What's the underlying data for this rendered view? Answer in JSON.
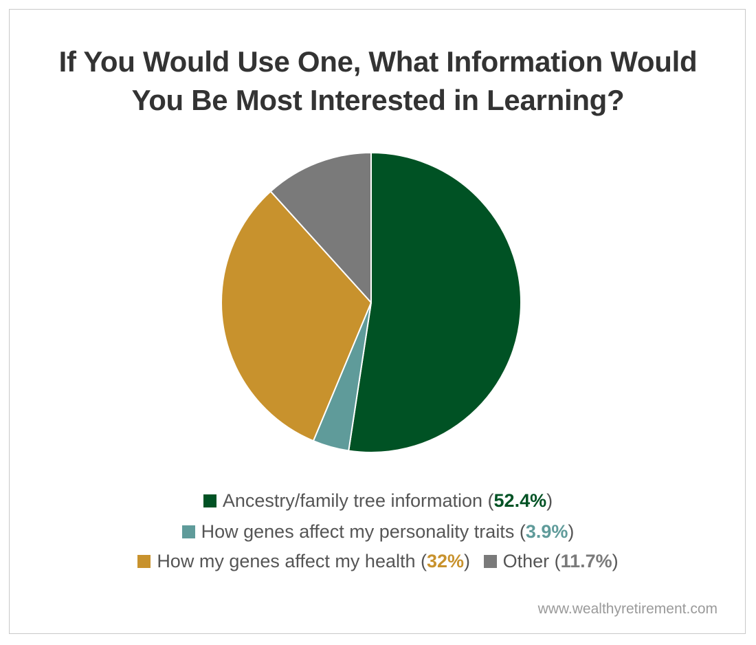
{
  "chart_data": {
    "type": "pie",
    "title": [
      "If You Would Use One, What Information Would",
      "You Be Most Interested in Learning?"
    ],
    "slices": [
      {
        "label": "Ancestry/family tree information",
        "value": 52.4,
        "value_label": "52.4%",
        "color": "#005224"
      },
      {
        "label": "How genes affect my personality traits",
        "value": 3.9,
        "value_label": "3.9%",
        "color": "#5f9b9a"
      },
      {
        "label": "How my genes affect my health",
        "value": 32,
        "value_label": "32%",
        "color": "#c8922d"
      },
      {
        "label": "Other",
        "value": 11.7,
        "value_label": "11.7%",
        "color": "#7a7a7a"
      }
    ],
    "legend_position": "bottom"
  },
  "source": "www.wealthyretirement.com"
}
